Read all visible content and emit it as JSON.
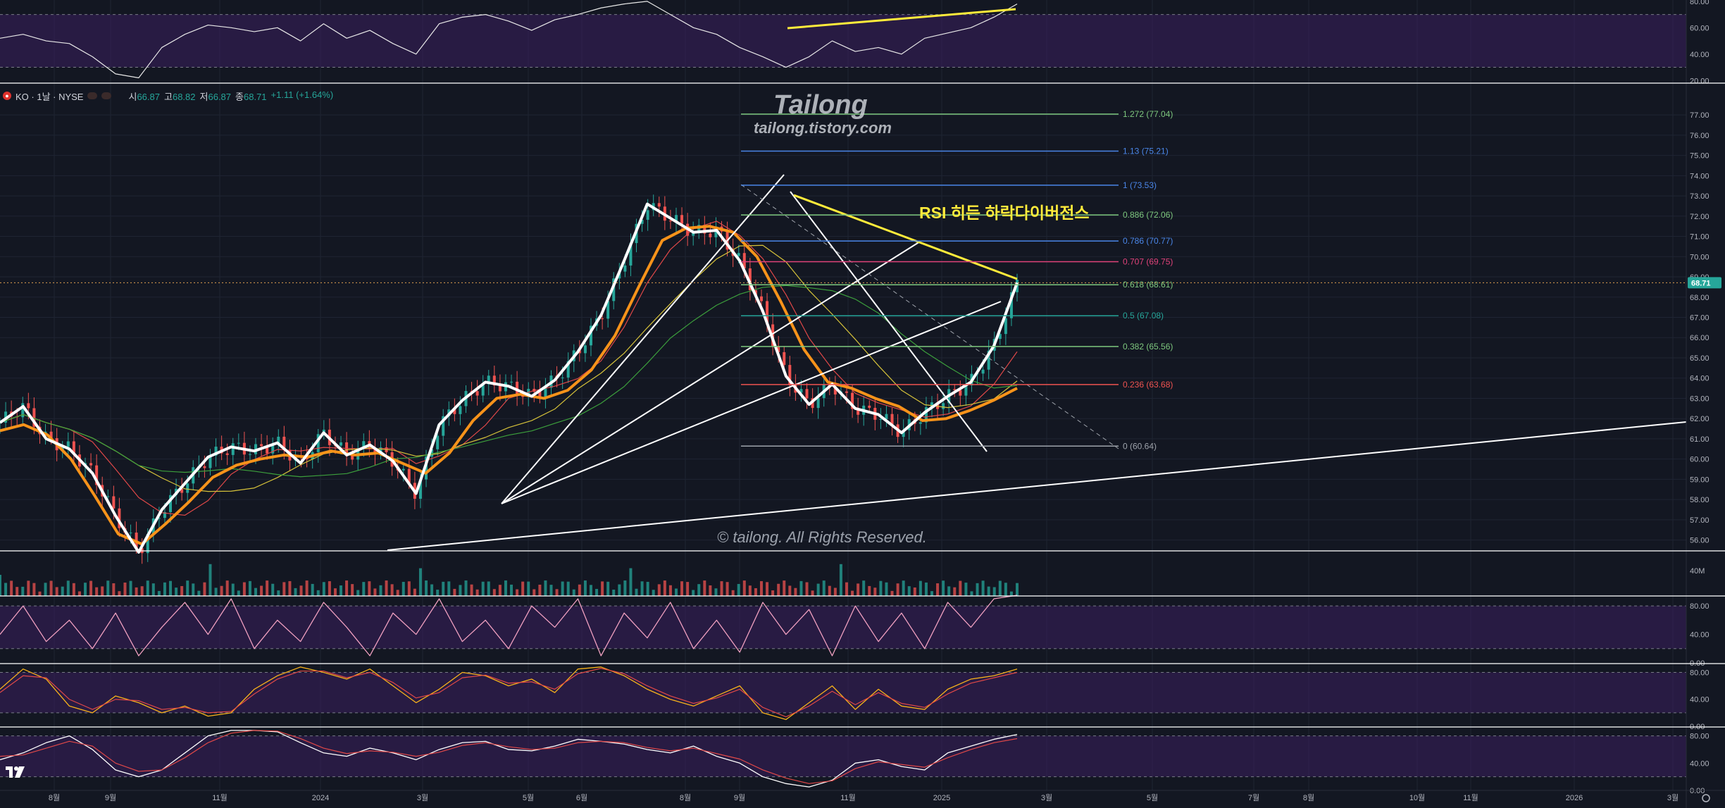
{
  "legend": {
    "symbol": "KO · 1날 · NYSE",
    "open_label": "시",
    "open_value": "66.87",
    "high_label": "고",
    "high_value": "68.82",
    "low_label": "저",
    "low_value": "66.87",
    "close_label": "종",
    "close_value": "68.71",
    "change": "+1.11 (+1.64%)"
  },
  "watermark": {
    "title": "Tailong",
    "url": "tailong.tistory.com",
    "copyright": "© tailong. All Rights Reserved."
  },
  "annotation": {
    "divergence_label": "RSI 히든 하락다이버전스"
  },
  "price_badge": "68.71",
  "colors": {
    "background": "#131722",
    "candle_up": "#26a69a",
    "candle_down": "#ef5350",
    "price_line": "#ffffff",
    "ma_orange": "#f7931a",
    "annotation_yellow": "#ffeb3b",
    "oscillator_band": "#3b1f5e"
  },
  "chart_data": [
    {
      "type": "line",
      "panel": "main-price",
      "ylim": [
        55.5,
        78.5
      ],
      "y_ticks": [
        "77.00",
        "76.00",
        "75.00",
        "74.00",
        "73.00",
        "72.00",
        "71.00",
        "70.00",
        "69.00",
        "68.00",
        "67.00",
        "66.00",
        "65.00",
        "64.00",
        "63.00",
        "62.00",
        "61.00",
        "60.00",
        "59.00",
        "58.00",
        "57.00",
        "56.00"
      ],
      "x_ticks": [
        "8월",
        "9월",
        "11월",
        "2024",
        "3월",
        "5월",
        "6월",
        "8월",
        "9월",
        "11월",
        "2025",
        "3월",
        "5월",
        "7월",
        "8월",
        "10월",
        "11월",
        "2026",
        "3월"
      ],
      "series": [
        {
          "values": [
            61.8,
            62.6,
            61.0,
            60.5,
            59.3,
            57.2,
            55.4,
            57.5,
            58.8,
            60.1,
            60.6,
            60.4,
            60.8,
            59.8,
            61.3,
            60.2,
            60.7,
            59.9,
            58.3,
            61.7,
            62.9,
            63.8,
            63.6,
            63.1,
            63.9,
            65.3,
            67.1,
            69.8,
            72.6,
            71.9,
            71.2,
            71.3,
            69.8,
            67.3,
            64.1,
            62.7,
            63.7,
            62.5,
            62.2,
            61.3,
            62.3,
            63.1,
            63.8,
            65.6,
            68.71
          ]
        },
        {
          "values": [
            61.4,
            61.7,
            61.2,
            60.0,
            58.2,
            56.3,
            55.8,
            56.8,
            57.9,
            59.1,
            59.7,
            60.0,
            60.2,
            60.1,
            60.4,
            60.2,
            60.3,
            59.8,
            59.3,
            60.3,
            61.9,
            63.0,
            63.2,
            63.0,
            63.4,
            64.4,
            66.1,
            68.5,
            70.8,
            71.4,
            71.5,
            71.2,
            70.0,
            67.8,
            65.4,
            63.8,
            63.5,
            63.0,
            62.6,
            61.9,
            62.0,
            62.4,
            62.9,
            63.5
          ]
        }
      ],
      "fibonacci": [
        {
          "label": "1.272 (77.04)",
          "value": 77.04
        },
        {
          "label": "1.13 (75.21)",
          "value": 75.21
        },
        {
          "label": "1 (73.53)",
          "value": 73.53
        },
        {
          "label": "0.886 (72.06)",
          "value": 72.06
        },
        {
          "label": "0.786 (70.77)",
          "value": 70.77
        },
        {
          "label": "0.707 (69.75)",
          "value": 69.75
        },
        {
          "label": "0.618 (68.61)",
          "value": 68.61
        },
        {
          "label": "0.5 (67.08)",
          "value": 67.08
        },
        {
          "label": "0.382 (65.56)",
          "value": 65.56
        },
        {
          "label": "0.236 (63.68)",
          "value": 63.68
        },
        {
          "label": "0 (60.64)",
          "value": 60.64
        }
      ]
    },
    {
      "type": "line",
      "panel": "rsi-top",
      "ylim": [
        18,
        81
      ],
      "y_ticks": [
        "80.00",
        "60.00",
        "40.00",
        "20.00"
      ],
      "series": [
        {
          "values": [
            52,
            55,
            50,
            48,
            38,
            25,
            22,
            45,
            55,
            62,
            60,
            57,
            60,
            50,
            63,
            52,
            58,
            48,
            40,
            63,
            68,
            70,
            65,
            58,
            66,
            70,
            75,
            78,
            80,
            70,
            60,
            55,
            45,
            38,
            30,
            38,
            50,
            42,
            45,
            40,
            52,
            56,
            60,
            68,
            78
          ]
        }
      ]
    },
    {
      "type": "bar",
      "panel": "volume",
      "y_ticks": [
        "40M"
      ]
    },
    {
      "type": "line",
      "panel": "stochastic-rsi",
      "ylim": [
        0,
        92
      ],
      "y_ticks": [
        "80.00",
        "40.00",
        "0.00"
      ],
      "series": [
        {
          "values": [
            40,
            80,
            30,
            60,
            20,
            70,
            10,
            50,
            85,
            40,
            90,
            20,
            60,
            30,
            85,
            50,
            10,
            70,
            40,
            90,
            30,
            60,
            20,
            80,
            50,
            90,
            10,
            70,
            35,
            85,
            20,
            60,
            15,
            85,
            40,
            75,
            10,
            80,
            30,
            70,
            20,
            85,
            50,
            90,
            95
          ]
        }
      ]
    },
    {
      "type": "line",
      "panel": "stochastic",
      "ylim": [
        0,
        92
      ],
      "y_ticks": [
        "80.00",
        "40.00",
        "0.00"
      ],
      "series": [
        {
          "values": [
            55,
            85,
            70,
            30,
            20,
            45,
            35,
            20,
            30,
            15,
            20,
            55,
            75,
            88,
            80,
            70,
            85,
            60,
            35,
            55,
            80,
            75,
            60,
            70,
            50,
            85,
            88,
            75,
            55,
            40,
            30,
            45,
            60,
            20,
            10,
            35,
            60,
            25,
            55,
            30,
            25,
            55,
            70,
            75,
            85
          ]
        },
        {
          "values": [
            50,
            75,
            72,
            40,
            25,
            40,
            38,
            25,
            28,
            20,
            22,
            48,
            70,
            82,
            82,
            72,
            80,
            65,
            42,
            50,
            72,
            76,
            64,
            66,
            55,
            78,
            86,
            78,
            60,
            45,
            34,
            42,
            55,
            28,
            14,
            30,
            52,
            32,
            50,
            34,
            28,
            48,
            64,
            72,
            80
          ]
        }
      ]
    },
    {
      "type": "line",
      "panel": "macd-like",
      "ylim": [
        0,
        92
      ],
      "y_ticks": [
        "80.00",
        "40.00",
        "0.00"
      ],
      "series": [
        {
          "values": [
            45,
            55,
            70,
            80,
            60,
            30,
            20,
            30,
            55,
            80,
            88,
            88,
            86,
            70,
            55,
            50,
            62,
            55,
            45,
            60,
            70,
            72,
            60,
            58,
            65,
            75,
            72,
            68,
            60,
            55,
            65,
            50,
            40,
            20,
            10,
            5,
            15,
            40,
            45,
            35,
            30,
            55,
            65,
            75,
            82
          ]
        },
        {
          "values": [
            50,
            52,
            62,
            72,
            65,
            40,
            28,
            30,
            48,
            70,
            84,
            88,
            87,
            76,
            62,
            54,
            58,
            56,
            50,
            56,
            66,
            70,
            64,
            60,
            62,
            70,
            72,
            70,
            63,
            58,
            62,
            54,
            46,
            30,
            18,
            10,
            14,
            32,
            42,
            38,
            34,
            48,
            60,
            70,
            76
          ]
        }
      ]
    }
  ]
}
